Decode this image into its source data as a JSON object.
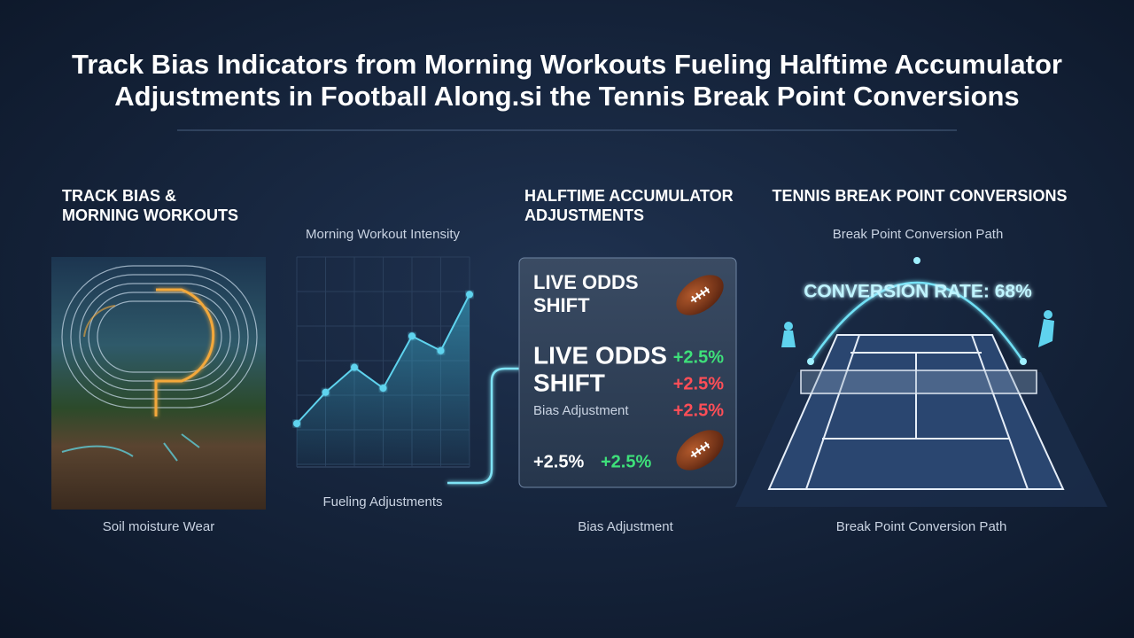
{
  "header": {
    "title_lines": [
      "Track Bias Indicators from Morning Workouts Fueling Halftime Accumulator",
      "Adjustments in Football Along.si the Tennis Break Point Conversions"
    ]
  },
  "track_panel": {
    "heading_lines": [
      "TRACK BIAS &",
      "MORNING WORKOUTS"
    ],
    "caption": "Soil moisture Wear"
  },
  "workout_panel": {
    "chart_data": {
      "type": "line",
      "title": "Morning Workout Intensity",
      "values": [
        20,
        35,
        47,
        37,
        62,
        55,
        82
      ],
      "ylim": [
        0,
        100
      ],
      "color": "#5fd3ee"
    },
    "caption": "Fueling Adjustments"
  },
  "accumulator_panel": {
    "heading_lines": [
      "HALFTIME ACCUMULATOR",
      "ADJUSTMENTS"
    ],
    "card": {
      "top_label_lines": [
        "LIVE ODDS",
        "SHIFT"
      ],
      "main_label_lines": [
        "LIVE ODDS",
        "SHIFT"
      ],
      "rows": [
        {
          "value": "+2.5%",
          "color": "#3ee07a"
        },
        {
          "value": "+2.5%",
          "color": "#ff4e57"
        }
      ],
      "bias_label": "Bias Adjustment",
      "bias_value": "+2.5%",
      "bottom_values": [
        "+2.5%",
        "+2.5%"
      ]
    },
    "caption": "Bias Adjustment"
  },
  "tennis_panel": {
    "heading": "TENNIS BREAK POINT CONVERSIONS",
    "subtitle": "Break Point Conversion Path",
    "rate_label": "CONVERSION RATE: 68%",
    "caption": "Break Point Conversion Path"
  }
}
